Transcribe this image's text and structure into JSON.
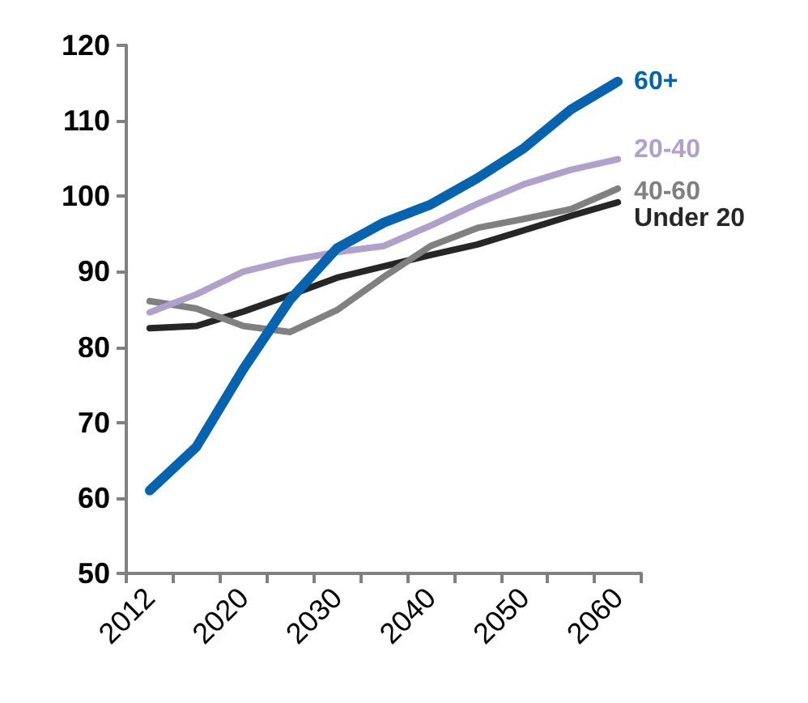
{
  "chart_data": {
    "type": "line",
    "categories": [
      "2012",
      null,
      "2020",
      null,
      "2030",
      null,
      "2040",
      null,
      "2050",
      null,
      "2060"
    ],
    "ylim": [
      50,
      120
    ],
    "yticks": [
      50,
      60,
      70,
      80,
      90,
      100,
      110,
      120
    ],
    "grid": false,
    "legend": false,
    "marker": "none",
    "line_style": "solid",
    "series": [
      {
        "name": "60+",
        "color": "#0563b0",
        "values": [
          61.0,
          66.8,
          77.1,
          86.3,
          93.1,
          96.5,
          98.9,
          102.4,
          106.4,
          111.5,
          115.2
        ]
      },
      {
        "name": "20-40",
        "color": "#b0a0cc",
        "values": [
          84.6,
          87.0,
          90.0,
          91.5,
          92.6,
          93.4,
          96.1,
          99.0,
          101.6,
          103.5,
          104.9
        ]
      },
      {
        "name": "40-60",
        "color": "#808080",
        "values": [
          86.1,
          85.1,
          82.8,
          82.0,
          84.9,
          89.3,
          93.4,
          95.8,
          97.0,
          98.3,
          101.0
        ]
      },
      {
        "name": "Under 20",
        "color": "#262626",
        "values": [
          82.5,
          82.8,
          84.7,
          86.9,
          89.2,
          90.7,
          92.2,
          93.6,
          95.5,
          97.4,
          99.2
        ]
      }
    ]
  }
}
